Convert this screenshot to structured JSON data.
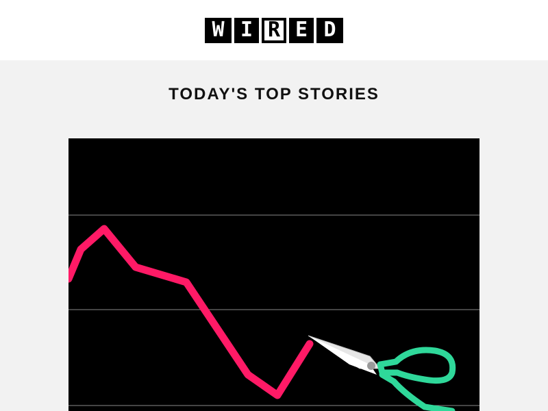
{
  "header": {
    "logo_letters": [
      "W",
      "I",
      "R",
      "E",
      "D"
    ],
    "logo_alt": "WIRED"
  },
  "main": {
    "section_title": "TODAY'S TOP STORIES",
    "hero_image": {
      "subject": "falling-line-chart-cut-by-scissors",
      "colors": {
        "background": "#000000",
        "line": "#ff1a66",
        "scissors_handle": "#2fd89a",
        "gridline": "#8a8a8a"
      }
    }
  }
}
